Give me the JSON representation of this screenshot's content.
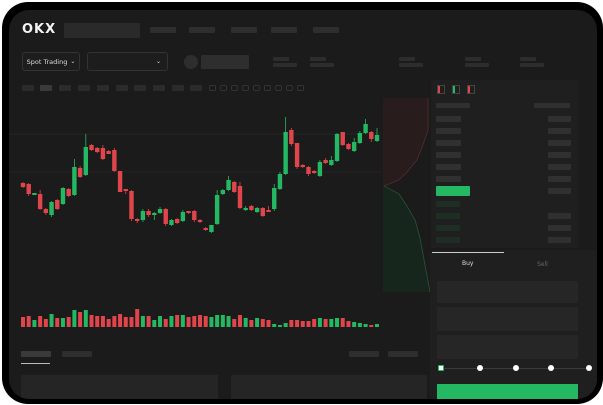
{
  "header": {
    "logo": "OKX",
    "nav_items": 5
  },
  "market": {
    "selector_label": "Spot Trading",
    "selector_icon": "chevron-down-icon",
    "pair_dropdown_icon": "chevron-down-icon"
  },
  "order_form": {
    "tabs": [
      {
        "label": "Buy",
        "active": true
      },
      {
        "label": "Sell",
        "active": false
      }
    ],
    "slider_percent": 0
  },
  "colors": {
    "up": "#25b862",
    "down": "#e0454c",
    "bg": "#1b1b1b",
    "skeleton": "#2e2e2e"
  },
  "chart_data": {
    "type": "candlestick",
    "candles": [
      [
        59,
        55,
        60,
        54
      ],
      [
        58,
        48,
        59,
        46
      ],
      [
        47,
        49,
        49,
        47
      ],
      [
        48,
        33,
        52,
        32
      ],
      [
        33,
        29,
        34,
        27
      ],
      [
        27,
        40,
        41,
        25
      ],
      [
        42,
        33,
        43,
        32
      ],
      [
        38,
        54,
        55,
        37
      ],
      [
        53,
        46,
        54,
        45
      ],
      [
        47,
        75,
        83,
        46
      ],
      [
        74,
        65,
        76,
        64
      ],
      [
        67,
        95,
        108,
        66
      ],
      [
        97,
        92,
        98,
        91
      ],
      [
        94,
        90,
        95,
        89
      ],
      [
        94,
        83,
        97,
        82
      ],
      [
        91,
        88,
        92,
        88
      ],
      [
        92,
        71,
        94,
        70
      ],
      [
        71,
        50,
        71,
        50
      ],
      [
        53,
        51,
        53,
        48
      ],
      [
        51,
        23,
        52,
        21
      ],
      [
        23,
        21,
        24,
        19
      ],
      [
        22,
        31,
        33,
        20
      ],
      [
        31,
        27,
        33,
        25
      ],
      [
        27,
        29,
        30,
        22
      ],
      [
        29,
        33,
        35,
        28
      ],
      [
        33,
        18,
        34,
        16
      ],
      [
        17,
        22,
        23,
        16
      ],
      [
        23,
        19,
        24,
        18
      ],
      [
        21,
        30,
        32,
        20
      ],
      [
        31,
        29,
        31,
        28
      ],
      [
        31,
        22,
        32,
        20
      ],
      [
        22,
        20,
        23,
        19
      ],
      [
        14,
        12,
        15,
        11
      ],
      [
        10,
        17,
        17,
        9
      ],
      [
        18,
        47,
        52,
        17
      ],
      [
        48,
        52,
        53,
        47
      ],
      [
        52,
        62,
        66,
        51
      ],
      [
        60,
        50,
        61,
        49
      ],
      [
        56,
        34,
        60,
        33
      ],
      [
        33,
        34,
        36,
        31
      ],
      [
        36,
        32,
        37,
        31
      ],
      [
        30,
        34,
        35,
        29
      ],
      [
        34,
        26,
        35,
        25
      ],
      [
        32,
        30,
        36,
        30
      ],
      [
        33,
        54,
        58,
        31
      ],
      [
        53,
        68,
        70,
        52
      ],
      [
        68,
        110,
        125,
        67
      ],
      [
        112,
        98,
        114,
        96
      ],
      [
        99,
        75,
        99,
        73
      ],
      [
        77,
        75,
        78,
        74
      ],
      [
        75,
        68,
        76,
        66
      ],
      [
        71,
        69,
        72,
        68
      ],
      [
        66,
        80,
        82,
        65
      ],
      [
        82,
        79,
        84,
        78
      ],
      [
        77,
        82,
        86,
        76
      ],
      [
        81,
        108,
        109,
        80
      ],
      [
        110,
        97,
        110,
        96
      ],
      [
        98,
        93,
        99,
        92
      ],
      [
        91,
        100,
        104,
        90
      ],
      [
        99,
        109,
        111,
        98
      ],
      [
        109,
        118,
        123,
        108
      ],
      [
        110,
        103,
        111,
        100
      ],
      [
        101,
        107,
        114,
        100
      ]
    ],
    "candle_format": [
      "open",
      "close",
      "high",
      "low"
    ],
    "volume": [
      10,
      11,
      7,
      11,
      8,
      13,
      9,
      9,
      10,
      17,
      15,
      17,
      12,
      11,
      11,
      8,
      11,
      13,
      10,
      10,
      18,
      11,
      11,
      7,
      11,
      8,
      11,
      12,
      12,
      10,
      11,
      12,
      11,
      10,
      12,
      12,
      11,
      8,
      12,
      9,
      7,
      9,
      8,
      7,
      3,
      2,
      4,
      7,
      7,
      6,
      6,
      8,
      9,
      8,
      8,
      9,
      9,
      6,
      5,
      4,
      3,
      2,
      3
    ]
  }
}
